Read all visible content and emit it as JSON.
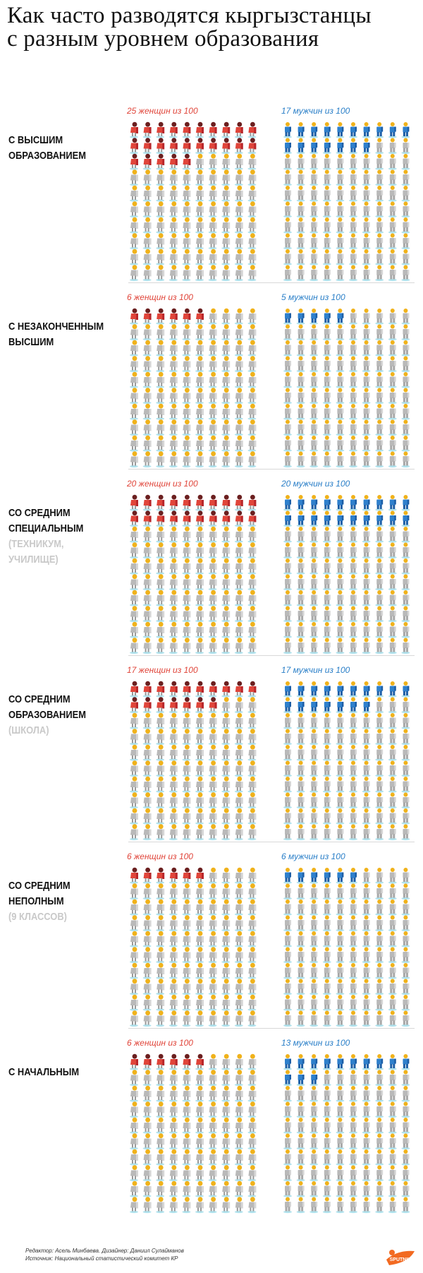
{
  "title_lines": [
    "Как часто разводятся кыргызстанцы",
    "с разным уровнем образования"
  ],
  "colors": {
    "women": "#e0453a",
    "women_dark": "#b8262a",
    "men": "#2f80cc",
    "men_dark": "#1c5ea6",
    "person_gray": "#b9b9b9",
    "person_light": "#d6d6d6",
    "person_shadow": "#8fd6e6",
    "hair": "#f0b21b",
    "divider": "#d8d8d8"
  },
  "icons": {
    "woman": "woman-icon",
    "man": "man-icon",
    "logo": "sputnik-logo"
  },
  "sections": [
    {
      "label": [
        "С высшим",
        "образованием"
      ],
      "sub": [],
      "women_caption": "25 женщин из 100",
      "men_caption": "17 мужчин из 100"
    },
    {
      "label": [
        "С незаконченным",
        "высшим"
      ],
      "sub": [],
      "women_caption": "6 женщин из 100",
      "men_caption": "5 мужчин из 100"
    },
    {
      "label": [
        "Со средним",
        "специальным"
      ],
      "sub": [
        "(техникум,",
        "училище)"
      ],
      "women_caption": "20 женщин из 100",
      "men_caption": "20 мужчин из 100"
    },
    {
      "label": [
        "Со средним",
        "образованием"
      ],
      "sub": [
        "(школа)"
      ],
      "women_caption": "17 женщин из 100",
      "men_caption": "17 мужчин из 100"
    },
    {
      "label": [
        "Со средним",
        "неполным"
      ],
      "sub": [
        "(9 классов)"
      ],
      "women_caption": "6 женщин из 100",
      "men_caption": "6 мужчин из 100"
    },
    {
      "label": [
        "С начальным"
      ],
      "sub": [],
      "women_caption": "6 женщин из 100",
      "men_caption": "13 мужчин из 100"
    }
  ],
  "chart_data": {
    "type": "bar",
    "title": "Как часто разводятся кыргызстанцы с разным уровнем образования",
    "categories": [
      "С высшим образованием",
      "С незаконченным высшим",
      "Со средним специальным (техникум, училище)",
      "Со средним образованием (школа)",
      "Со средним неполным (9 классов)",
      "С начальным"
    ],
    "series": [
      {
        "name": "женщин из 100",
        "values": [
          25,
          6,
          20,
          17,
          6,
          6
        ]
      },
      {
        "name": "мужчин из 100",
        "values": [
          17,
          5,
          20,
          17,
          6,
          13
        ]
      }
    ],
    "units_per_chart": 100
  },
  "footer": {
    "credits": "Редактор: Асель Минбаева. Дизайнер: Даниил Сулайманов",
    "source": "Источник: Национальный статистический комитет КР",
    "logo_text": "SPUTNIK"
  }
}
